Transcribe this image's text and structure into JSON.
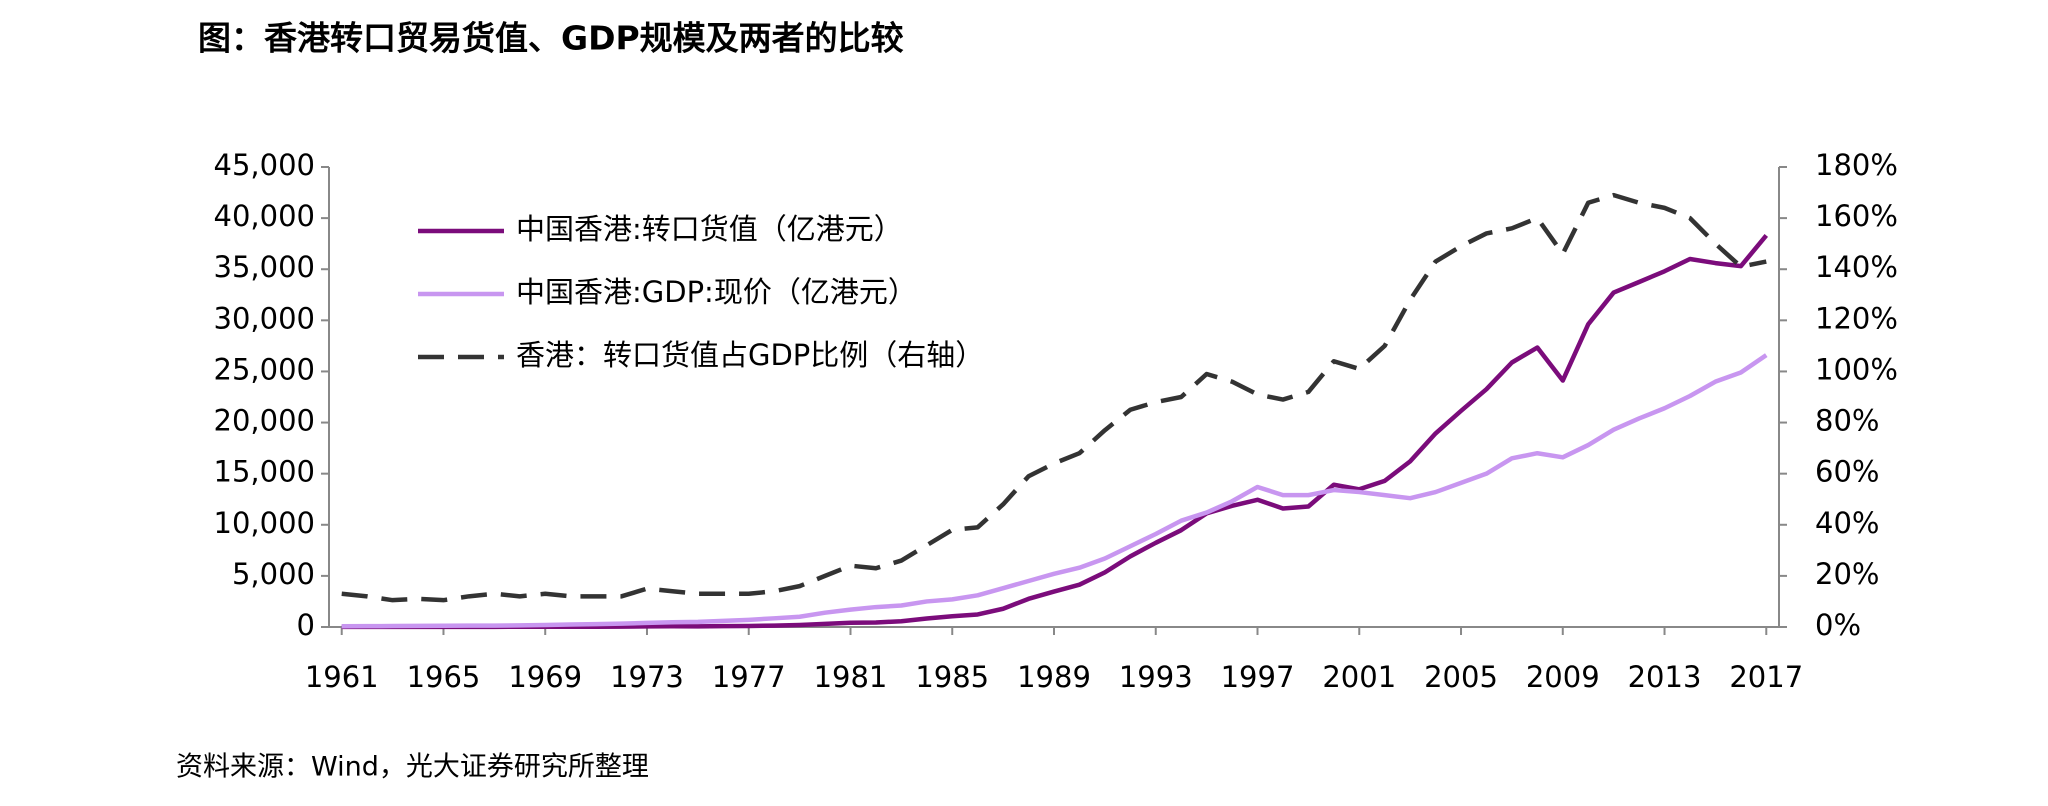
{
  "chart_data": {
    "type": "line",
    "title": "图：香港转口贸易货值、GDP规模及两者的比较",
    "source": "资料来源：Wind，光大证券研究所整理",
    "x": [
      1961,
      1962,
      1963,
      1964,
      1965,
      1966,
      1967,
      1968,
      1969,
      1970,
      1971,
      1972,
      1973,
      1974,
      1975,
      1976,
      1977,
      1978,
      1979,
      1980,
      1981,
      1982,
      1983,
      1984,
      1985,
      1986,
      1987,
      1988,
      1989,
      1990,
      1991,
      1992,
      1993,
      1994,
      1995,
      1996,
      1997,
      1998,
      1999,
      2000,
      2001,
      2002,
      2003,
      2004,
      2005,
      2006,
      2007,
      2008,
      2009,
      2010,
      2011,
      2012,
      2013,
      2014,
      2015,
      2016,
      2017
    ],
    "series": [
      {
        "name": "中国香港:转口货值（亿港元）",
        "color": "#7b0c7b",
        "axis": "y",
        "dash": false,
        "values": [
          10,
          11,
          12,
          13,
          14,
          15,
          17,
          20,
          23,
          26,
          30,
          35,
          61,
          70,
          67,
          89,
          98,
          135,
          201,
          302,
          419,
          444,
          563,
          835,
          1053,
          1228,
          1786,
          2754,
          3470,
          4139,
          5345,
          6909,
          8237,
          9472,
          11121,
          11854,
          12447,
          11597,
          11789,
          13918,
          13471,
          14297,
          16203,
          18938,
          21143,
          23266,
          25875,
          27339,
          24111,
          29613,
          32717,
          33750,
          34800,
          36000,
          35600,
          35300,
          38300
        ]
      },
      {
        "name": "中国香港:GDP:现价（亿港元）",
        "color": "#c896f0",
        "axis": "y",
        "dash": false,
        "values": [
          76,
          85,
          95,
          110,
          120,
          130,
          140,
          160,
          190,
          240,
          280,
          330,
          400,
          460,
          500,
          600,
          700,
          850,
          1000,
          1400,
          1700,
          1950,
          2100,
          2500,
          2700,
          3100,
          3800,
          4500,
          5200,
          5800,
          6700,
          7900,
          9100,
          10400,
          11200,
          12300,
          13700,
          12900,
          12900,
          13400,
          13200,
          12900,
          12600,
          13200,
          14100,
          15000,
          16500,
          17000,
          16600,
          17800,
          19300,
          20400,
          21400,
          22600,
          24000,
          24900,
          26600
        ]
      },
      {
        "name": "香港：转口货值占GDP比例（右轴）",
        "color": "#333333",
        "axis": "y2",
        "dash": true,
        "values": [
          13,
          12,
          10.5,
          11,
          10.5,
          12,
          13,
          12,
          13,
          12,
          12,
          12,
          15,
          14,
          13,
          13,
          13,
          14,
          16,
          20,
          24,
          23,
          26,
          32,
          38,
          39,
          48,
          59,
          64,
          68,
          77,
          85,
          88,
          90,
          99,
          96,
          91,
          89,
          92,
          104,
          101,
          110,
          128,
          143,
          149,
          154,
          156,
          160,
          146,
          166,
          169,
          166,
          164,
          160,
          150,
          141,
          143
        ]
      }
    ],
    "xlim": [
      1960.5,
      2017.5
    ],
    "xticks": [
      1961,
      1965,
      1969,
      1973,
      1977,
      1981,
      1985,
      1989,
      1993,
      1997,
      2001,
      2005,
      2009,
      2013,
      2017
    ],
    "ylim": [
      0,
      45000
    ],
    "yticks": [
      0,
      {
        "value": 5000,
        "label": "5,000"
      },
      {
        "value": 10000,
        "label": "10,000"
      },
      {
        "value": 15000,
        "label": "15,000"
      },
      {
        "value": 20000,
        "label": "20,000"
      },
      {
        "value": 25000,
        "label": "25,000"
      },
      {
        "value": 30000,
        "label": "30,000"
      },
      {
        "value": 35000,
        "label": "35,000"
      },
      {
        "value": 40000,
        "label": "40,000"
      },
      {
        "value": 45000,
        "label": "45,000"
      }
    ],
    "y2lim": [
      0,
      180
    ],
    "y2ticks": [
      {
        "value": 0,
        "label": "0%"
      },
      {
        "value": 20,
        "label": "20%"
      },
      {
        "value": 40,
        "label": "40%"
      },
      {
        "value": 60,
        "label": "60%"
      },
      {
        "value": 80,
        "label": "80%"
      },
      {
        "value": 100,
        "label": "100%"
      },
      {
        "value": 120,
        "label": "120%"
      },
      {
        "value": 140,
        "label": "140%"
      },
      {
        "value": 160,
        "label": "160%"
      },
      {
        "value": 180,
        "label": "180%"
      }
    ],
    "legend": "upper left"
  }
}
